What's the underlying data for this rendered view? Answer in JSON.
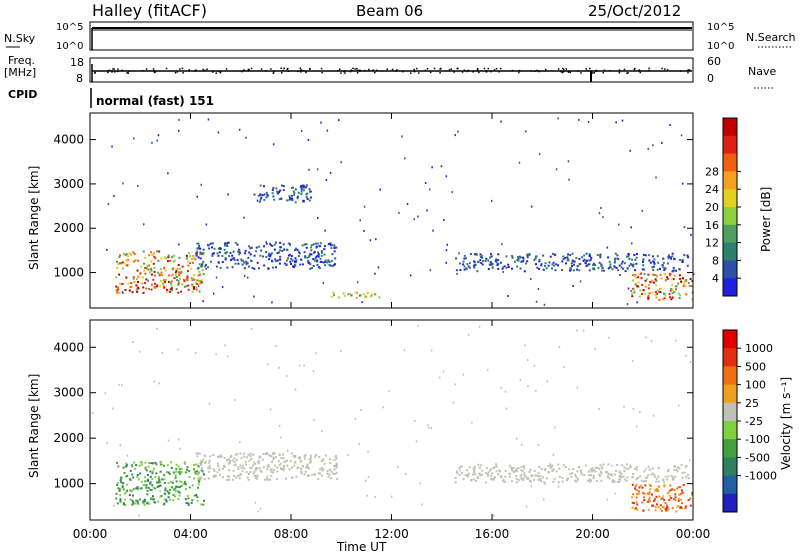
{
  "header": {
    "site": "Halley (fitACF)",
    "beam": "Beam 06",
    "date": "25/Oct/2012"
  },
  "strip": {
    "nsky_label": "N.Sky",
    "nsky_ticks": [
      "10^5",
      "10^0"
    ],
    "nsearch_label": "N.Search",
    "nsearch_ticks": [
      "10^5",
      "10^0"
    ],
    "freq_label": "Freq.",
    "freq_unit": "[MHz]",
    "freq_ticks": [
      "18",
      "8"
    ],
    "nave_label": "Nave",
    "nave_ticks": [
      "60",
      "0"
    ],
    "cpid_label": "CPID",
    "cpid_text": "normal (fast) 151"
  },
  "chart_data": [
    {
      "type": "heatmap",
      "title": "",
      "xlabel": "",
      "ylabel": "Slant Range [km]",
      "xlim_hours": [
        0,
        24
      ],
      "ylim_km": [
        200,
        4600
      ],
      "ytick_labels": [
        "1000",
        "2000",
        "3000",
        "4000"
      ],
      "colorbar": {
        "label": "Power [dB]",
        "tick_labels": [
          "4",
          "8",
          "12",
          "16",
          "20",
          "24",
          "28"
        ],
        "colors": [
          "#1f1fe0",
          "#2f4fa8",
          "#2f7f6f",
          "#4f9f5f",
          "#8fd040",
          "#e0d020",
          "#f5a020",
          "#f06010",
          "#e02010",
          "#c00000"
        ]
      },
      "features": [
        {
          "hours": [
            1.0,
            4.5
          ],
          "range_km": [
            550,
            1500
          ],
          "level": "high"
        },
        {
          "hours": [
            4.2,
            9.8
          ],
          "range_km": [
            1100,
            1700
          ],
          "level": "low"
        },
        {
          "hours": [
            6.5,
            8.8
          ],
          "range_km": [
            2600,
            3000
          ],
          "level": "low"
        },
        {
          "hours": [
            9.5,
            11.5
          ],
          "range_km": [
            450,
            600
          ],
          "level": "mid"
        },
        {
          "hours": [
            14.5,
            23.8
          ],
          "range_km": [
            1050,
            1450
          ],
          "level": "low"
        },
        {
          "hours": [
            21.5,
            24.0
          ],
          "range_km": [
            400,
            1000
          ],
          "level": "high"
        }
      ]
    },
    {
      "type": "heatmap",
      "title": "",
      "xlabel": "Time UT",
      "ylabel": "Slant Range [km]",
      "xlim_hours": [
        0,
        24
      ],
      "ylim_km": [
        200,
        4600
      ],
      "ytick_labels": [
        "1000",
        "2000",
        "3000",
        "4000"
      ],
      "xtick_labels": [
        "00:00",
        "04:00",
        "08:00",
        "12:00",
        "16:00",
        "20:00",
        "00:00"
      ],
      "colorbar": {
        "label": "Velocity [m s⁻¹]",
        "tick_labels": [
          "1000",
          "500",
          "100",
          "25",
          "-25",
          "-100",
          "-500",
          "-1000"
        ],
        "colors": [
          "#2020c0",
          "#2060a0",
          "#308060",
          "#40a040",
          "#80d040",
          "#c0c0b8",
          "#f0a020",
          "#f07010",
          "#e03010",
          "#e00000"
        ]
      },
      "features": [
        {
          "hours": [
            1.0,
            4.5
          ],
          "range_km": [
            550,
            1500
          ],
          "level": "positive"
        },
        {
          "hours": [
            4.2,
            9.8
          ],
          "range_km": [
            1100,
            1700
          ],
          "level": "ground"
        },
        {
          "hours": [
            14.5,
            23.8
          ],
          "range_km": [
            1050,
            1450
          ],
          "level": "ground"
        },
        {
          "hours": [
            21.5,
            24.0
          ],
          "range_km": [
            400,
            1000
          ],
          "level": "negative"
        }
      ]
    }
  ]
}
